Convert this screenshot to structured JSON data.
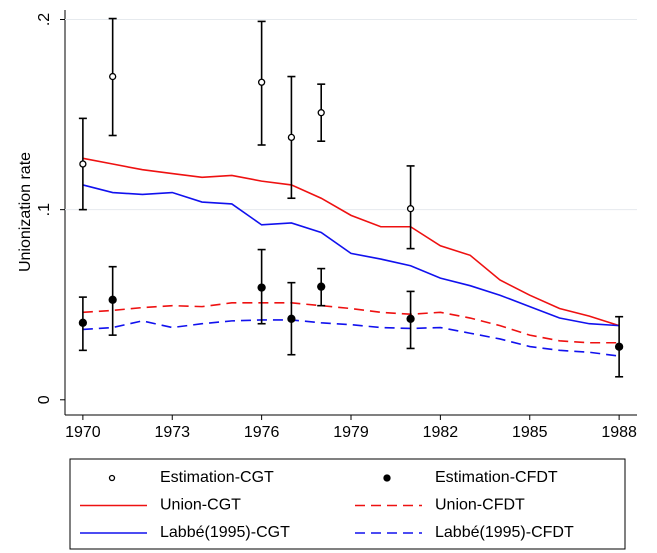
{
  "chart_data": {
    "type": "line",
    "y_label": "Unionization rate",
    "x": [
      1970,
      1971,
      1972,
      1973,
      1974,
      1975,
      1976,
      1977,
      1978,
      1979,
      1980,
      1981,
      1982,
      1983,
      1984,
      1985,
      1986,
      1987,
      1988
    ],
    "xlim": [
      1969.4,
      1988.6
    ],
    "xticks": [
      1970,
      1973,
      1976,
      1979,
      1982,
      1985,
      1988
    ],
    "ylim": [
      -0.008,
      0.205
    ],
    "yticks": [
      0,
      {
        "value": 0.1,
        "label": ".1"
      },
      {
        "value": 0.2,
        "label": ".2"
      }
    ],
    "grid": true,
    "legend": "bottom",
    "series": [
      {
        "name": "Estimation-CGT",
        "type": "scatter",
        "marker": "hollow",
        "color": "#000000",
        "x": [
          1970,
          1971,
          1976,
          1977,
          1978,
          1981
        ],
        "values": [
          0.124,
          0.17,
          0.167,
          0.138,
          0.151,
          0.1005
        ],
        "lower": [
          0.1,
          0.139,
          0.134,
          0.106,
          0.136,
          0.0795
        ],
        "upper": [
          0.148,
          0.2005,
          0.199,
          0.17,
          0.166,
          0.123
        ]
      },
      {
        "name": "Estimation-CFDT",
        "type": "scatter",
        "marker": "filled",
        "color": "#000000",
        "x": [
          1970,
          1971,
          1976,
          1977,
          1978,
          1981,
          1988
        ],
        "values": [
          0.0405,
          0.0526,
          0.059,
          0.0426,
          0.0595,
          0.0426,
          0.0279
        ],
        "lower": [
          0.026,
          0.034,
          0.04,
          0.0237,
          0.0495,
          0.027,
          0.0121
        ],
        "upper": [
          0.054,
          0.07,
          0.079,
          0.0616,
          0.069,
          0.057,
          0.0437
        ]
      },
      {
        "name": "Union-CGT",
        "type": "line",
        "style": "solid",
        "color": "#ee1111",
        "values": [
          0.127,
          0.124,
          0.121,
          0.119,
          0.117,
          0.118,
          0.115,
          0.113,
          0.106,
          0.097,
          0.091,
          0.091,
          0.081,
          0.076,
          0.063,
          0.055,
          0.048,
          0.044,
          0.039
        ]
      },
      {
        "name": "Union-CFDT",
        "type": "line",
        "style": "dashed",
        "color": "#ee1111",
        "values": [
          0.046,
          0.047,
          0.0485,
          0.0495,
          0.049,
          0.051,
          0.051,
          0.051,
          0.0495,
          0.048,
          0.046,
          0.045,
          0.046,
          0.043,
          0.039,
          0.034,
          0.031,
          0.03,
          0.03
        ]
      },
      {
        "name": "Labbé(1995)-CGT",
        "type": "line",
        "style": "solid",
        "color": "#1111ee",
        "values": [
          0.113,
          0.109,
          0.108,
          0.109,
          0.104,
          0.103,
          0.092,
          0.093,
          0.088,
          0.077,
          0.074,
          0.0705,
          0.064,
          0.06,
          0.055,
          0.049,
          0.043,
          0.04,
          0.039
        ]
      },
      {
        "name": "Labbé(1995)-CFDT",
        "type": "line",
        "style": "dashed",
        "color": "#1111ee",
        "values": [
          0.037,
          0.038,
          0.0415,
          0.038,
          0.04,
          0.0415,
          0.042,
          0.042,
          0.0405,
          0.0395,
          0.038,
          0.0375,
          0.038,
          0.035,
          0.032,
          0.028,
          0.026,
          0.025,
          0.023
        ]
      }
    ]
  }
}
